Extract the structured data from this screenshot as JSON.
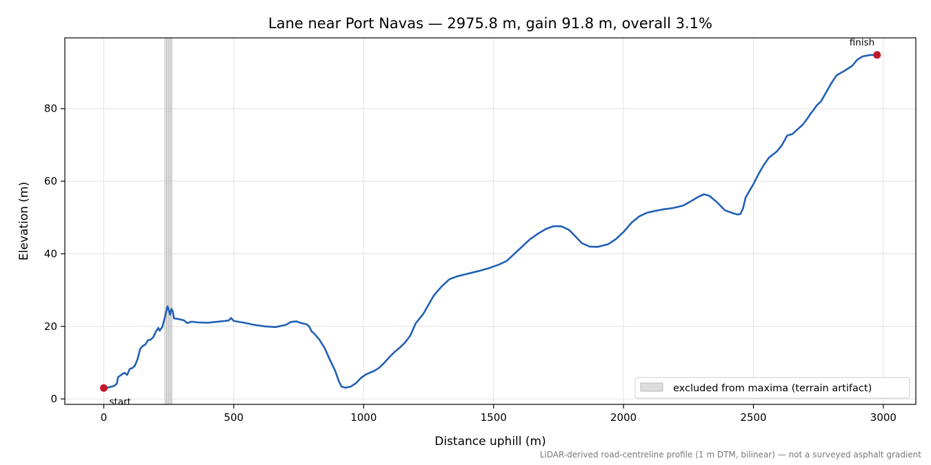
{
  "chart_data": {
    "type": "line",
    "title": "Lane near Port Navas — 2975.8 m, gain 91.8 m, overall 3.1%",
    "xlabel": "Distance uphill (m)",
    "ylabel": "Elevation (m)",
    "xlim": [
      -150,
      3125
    ],
    "ylim": [
      -1.5,
      99.5
    ],
    "x_ticks": [
      0,
      500,
      1000,
      1500,
      2000,
      2500,
      3000
    ],
    "y_ticks": [
      0,
      20,
      40,
      60,
      80
    ],
    "x_tick_labels": [
      "0",
      "500",
      "1000",
      "1500",
      "2000",
      "2500",
      "3000"
    ],
    "y_tick_labels": [
      "0",
      "20",
      "40",
      "60",
      "80"
    ],
    "grid": true,
    "series": [
      {
        "color": "#1f5fb4",
        "points": [
          [
            0,
            3
          ],
          [
            20,
            3.2
          ],
          [
            40,
            3.6
          ],
          [
            50,
            4.2
          ],
          [
            55,
            6.0
          ],
          [
            70,
            6.8
          ],
          [
            80,
            7.2
          ],
          [
            90,
            6.6
          ],
          [
            100,
            8.3
          ],
          [
            110,
            8.5
          ],
          [
            120,
            9.2
          ],
          [
            130,
            11.0
          ],
          [
            140,
            13.8
          ],
          [
            150,
            14.6
          ],
          [
            160,
            15.0
          ],
          [
            170,
            16.2
          ],
          [
            180,
            16.3
          ],
          [
            190,
            17.0
          ],
          [
            200,
            18.5
          ],
          [
            210,
            19.6
          ],
          [
            215,
            18.8
          ],
          [
            225,
            19.8
          ],
          [
            235,
            22.5
          ],
          [
            240,
            24.0
          ],
          [
            245,
            25.5
          ],
          [
            250,
            24.5
          ],
          [
            255,
            23.2
          ],
          [
            260,
            24.8
          ],
          [
            265,
            24.2
          ],
          [
            270,
            22.2
          ],
          [
            290,
            22.0
          ],
          [
            310,
            21.6
          ],
          [
            320,
            20.9
          ],
          [
            340,
            21.3
          ],
          [
            360,
            21.1
          ],
          [
            400,
            21.0
          ],
          [
            440,
            21.3
          ],
          [
            480,
            21.6
          ],
          [
            490,
            22.3
          ],
          [
            500,
            21.5
          ],
          [
            540,
            21.0
          ],
          [
            580,
            20.4
          ],
          [
            620,
            20.0
          ],
          [
            660,
            19.8
          ],
          [
            700,
            20.4
          ],
          [
            720,
            21.2
          ],
          [
            740,
            21.4
          ],
          [
            760,
            20.9
          ],
          [
            780,
            20.6
          ],
          [
            790,
            20.0
          ],
          [
            800,
            18.6
          ],
          [
            810,
            18.0
          ],
          [
            830,
            16.3
          ],
          [
            850,
            14.0
          ],
          [
            870,
            10.8
          ],
          [
            890,
            7.8
          ],
          [
            905,
            4.8
          ],
          [
            915,
            3.4
          ],
          [
            930,
            3.1
          ],
          [
            950,
            3.4
          ],
          [
            970,
            4.3
          ],
          [
            990,
            5.8
          ],
          [
            1010,
            6.8
          ],
          [
            1040,
            7.7
          ],
          [
            1060,
            8.6
          ],
          [
            1080,
            10.0
          ],
          [
            1100,
            11.6
          ],
          [
            1120,
            13.0
          ],
          [
            1140,
            14.2
          ],
          [
            1160,
            15.6
          ],
          [
            1180,
            17.5
          ],
          [
            1200,
            20.8
          ],
          [
            1230,
            23.5
          ],
          [
            1250,
            26.0
          ],
          [
            1270,
            28.5
          ],
          [
            1300,
            31.0
          ],
          [
            1330,
            33.0
          ],
          [
            1360,
            33.8
          ],
          [
            1400,
            34.5
          ],
          [
            1440,
            35.2
          ],
          [
            1480,
            36.0
          ],
          [
            1520,
            37.0
          ],
          [
            1550,
            38.0
          ],
          [
            1580,
            40.0
          ],
          [
            1610,
            42.0
          ],
          [
            1640,
            44.0
          ],
          [
            1670,
            45.5
          ],
          [
            1700,
            46.8
          ],
          [
            1730,
            47.6
          ],
          [
            1760,
            47.6
          ],
          [
            1790,
            46.6
          ],
          [
            1815,
            44.8
          ],
          [
            1840,
            42.9
          ],
          [
            1870,
            42.0
          ],
          [
            1900,
            41.9
          ],
          [
            1940,
            42.6
          ],
          [
            1970,
            44.0
          ],
          [
            2000,
            46.0
          ],
          [
            2030,
            48.5
          ],
          [
            2060,
            50.3
          ],
          [
            2090,
            51.3
          ],
          [
            2120,
            51.8
          ],
          [
            2150,
            52.2
          ],
          [
            2190,
            52.6
          ],
          [
            2230,
            53.3
          ],
          [
            2260,
            54.5
          ],
          [
            2290,
            55.8
          ],
          [
            2310,
            56.4
          ],
          [
            2330,
            56.0
          ],
          [
            2360,
            54.2
          ],
          [
            2390,
            52.0
          ],
          [
            2420,
            51.2
          ],
          [
            2440,
            50.8
          ],
          [
            2450,
            51.0
          ],
          [
            2460,
            52.5
          ],
          [
            2470,
            55.5
          ],
          [
            2490,
            58.0
          ],
          [
            2500,
            59.2
          ],
          [
            2520,
            62.0
          ],
          [
            2540,
            64.5
          ],
          [
            2560,
            66.5
          ],
          [
            2590,
            68.2
          ],
          [
            2610,
            70.0
          ],
          [
            2630,
            72.6
          ],
          [
            2650,
            73.0
          ],
          [
            2670,
            74.3
          ],
          [
            2690,
            75.6
          ],
          [
            2710,
            77.5
          ],
          [
            2720,
            78.6
          ],
          [
            2730,
            79.5
          ],
          [
            2745,
            81.0
          ],
          [
            2760,
            82.0
          ],
          [
            2780,
            84.5
          ],
          [
            2800,
            87.0
          ],
          [
            2820,
            89.2
          ],
          [
            2850,
            90.4
          ],
          [
            2880,
            91.8
          ],
          [
            2900,
            93.5
          ],
          [
            2920,
            94.4
          ],
          [
            2950,
            94.8
          ],
          [
            2975.8,
            94.8
          ]
        ]
      }
    ],
    "markers": [
      {
        "x": 0,
        "y": 3,
        "label": "start",
        "color": "#c21a2b"
      },
      {
        "x": 2975.8,
        "y": 94.8,
        "label": "finish",
        "color": "#c21a2b"
      }
    ],
    "excluded_band": {
      "x_from": 232,
      "x_to": 265,
      "color": "#d3d3d3"
    },
    "legend": {
      "position": "bottom-right",
      "entries": [
        {
          "label": "excluded from maxima (terrain artifact)",
          "color": "#dcdcdc"
        }
      ]
    },
    "footnote": "LiDAR-derived road-centreline profile (1 m DTM, bilinear) — not a surveyed asphalt gradient"
  }
}
